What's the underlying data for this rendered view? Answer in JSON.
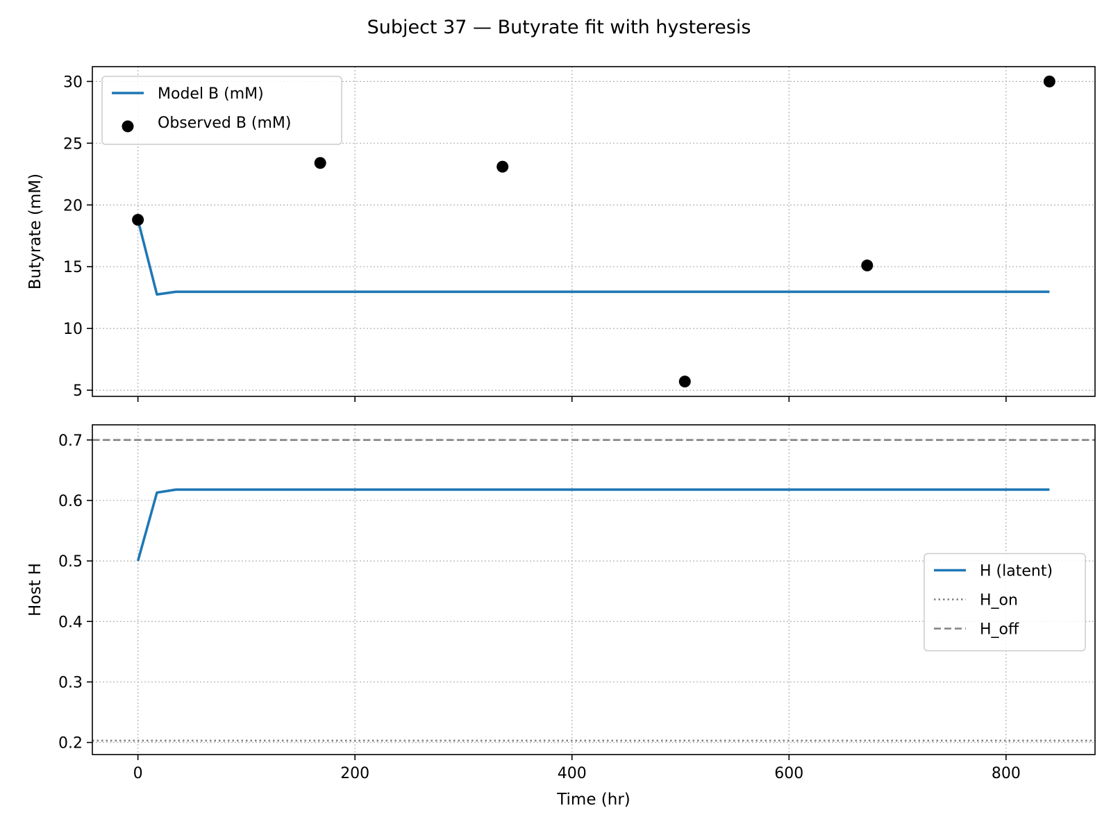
{
  "figure": {
    "title": "Subject 37 — Butyrate fit with hysteresis"
  },
  "chart_data": [
    {
      "type": "line",
      "ylabel": "Butyrate (mM)",
      "xlabel": "",
      "xlim": [
        -42,
        882
      ],
      "ylim": [
        4.5,
        31.2
      ],
      "xticks": [
        0,
        200,
        400,
        600,
        800
      ],
      "xtick_labels_visible": false,
      "yticks": [
        5,
        10,
        15,
        20,
        25,
        30
      ],
      "grid": true,
      "legend_placement": "upper left",
      "series": [
        {
          "name": "Model B (mM)",
          "kind": "line",
          "color": "#1f77b4",
          "x": [
            0,
            17.5,
            35,
            52.5,
            840
          ],
          "y": [
            18.8,
            12.75,
            12.97,
            12.97,
            12.97
          ]
        },
        {
          "name": "Observed B (mM)",
          "kind": "scatter",
          "color": "#000000",
          "x": [
            0,
            168,
            336,
            504,
            672,
            840
          ],
          "y": [
            18.8,
            23.4,
            23.1,
            5.7,
            15.1,
            30.0
          ]
        }
      ]
    },
    {
      "type": "line",
      "ylabel": "Host H",
      "xlabel": "Time (hr)",
      "xlim": [
        -42,
        882
      ],
      "ylim": [
        0.18,
        0.725
      ],
      "xticks": [
        0,
        200,
        400,
        600,
        800
      ],
      "yticks": [
        0.2,
        0.3,
        0.4,
        0.5,
        0.6,
        0.7
      ],
      "grid": true,
      "legend_placement": "center right",
      "series": [
        {
          "name": "H (latent)",
          "kind": "line",
          "color": "#1f77b4",
          "x": [
            0,
            17.5,
            35,
            52.5,
            840
          ],
          "y": [
            0.5,
            0.613,
            0.618,
            0.618,
            0.618
          ]
        },
        {
          "name": "H_on",
          "kind": "hline",
          "style": "dotted",
          "color": "#808080",
          "y": 0.203
        },
        {
          "name": "H_off",
          "kind": "hline",
          "style": "dashed",
          "color": "#808080",
          "y": 0.7
        }
      ]
    }
  ]
}
